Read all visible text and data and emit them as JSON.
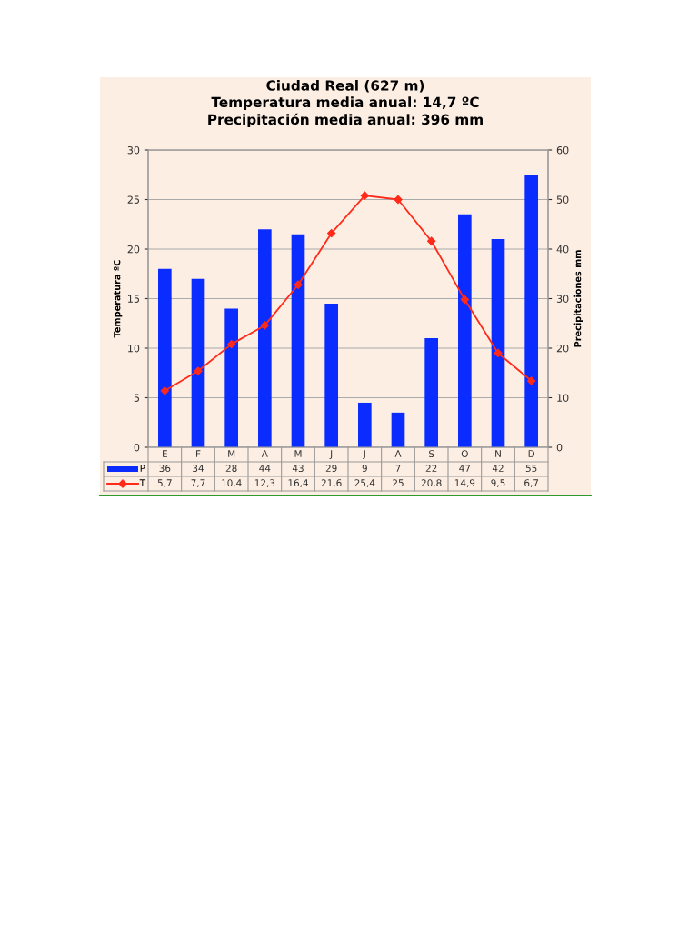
{
  "chart_data": {
    "type": "bar",
    "title": "Ciudad Real (627 m)\nTemperatura media anual: 14,7 ºC\nPrecipitación media anual: 396 mm",
    "ylabel": "Temperatura ºC",
    "y2label": "Precipitaciones mm",
    "categories": [
      "E",
      "F",
      "M",
      "A",
      "M",
      "J",
      "J",
      "A",
      "S",
      "O",
      "N",
      "D"
    ],
    "series": [
      {
        "name": "P",
        "axis": "y2",
        "color": "#0a2cff",
        "values": [
          36,
          34,
          28,
          44,
          43,
          29,
          9,
          7,
          22,
          47,
          42,
          55
        ],
        "value_labels": [
          "36",
          "34",
          "28",
          "44",
          "43",
          "29",
          "9",
          "7",
          "22",
          "47",
          "42",
          "55"
        ]
      },
      {
        "name": "T",
        "type": "line",
        "color": "#ff2a1a",
        "values": [
          5.7,
          7.7,
          10.4,
          12.3,
          16.4,
          21.6,
          25.4,
          25,
          20.8,
          14.9,
          9.5,
          6.7
        ],
        "value_labels": [
          "5,7",
          "7,7",
          "10,4",
          "12,3",
          "16,4",
          "21,6",
          "25,4",
          "25",
          "20,8",
          "14,9",
          "9,5",
          "6,7"
        ]
      }
    ],
    "ylim": [
      0,
      30
    ],
    "yticks": [
      0,
      5,
      10,
      15,
      20,
      25,
      30
    ],
    "y2lim": [
      0,
      60
    ],
    "y2ticks": [
      0,
      10,
      20,
      30,
      40,
      50,
      60
    ],
    "grid": "y",
    "marker": "diamond",
    "legend": "bottom left"
  }
}
